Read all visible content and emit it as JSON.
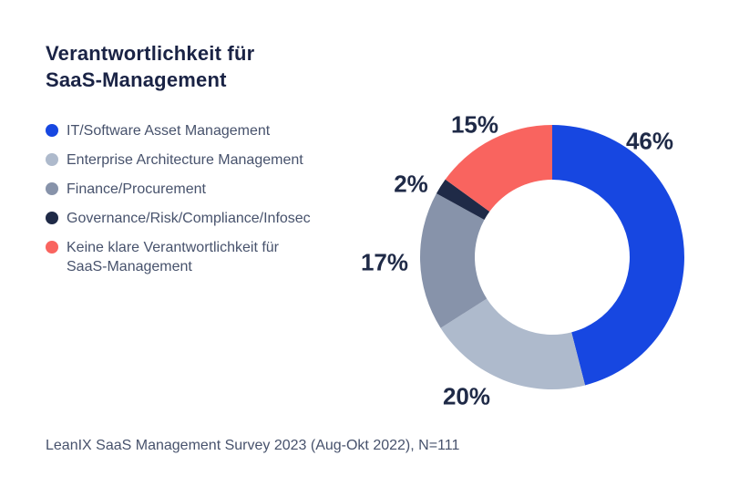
{
  "title": "Verantwortlichkeit für\nSaaS-Management",
  "footer": "LeanIX SaaS Management Survey 2023 (Aug-Okt 2022), N=111",
  "colors": {
    "title": "#1A2345",
    "body_text": "#47526C",
    "percent_labels": "#1F2A47",
    "background": "#FFFFFF"
  },
  "chart_data": {
    "type": "pie",
    "subtype": "donut",
    "title": "Verantwortlichkeit für SaaS-Management",
    "legend_position": "left",
    "start_angle_deg": 0,
    "direction": "clockwise",
    "units": "%",
    "segments": [
      {
        "label": "IT/Software Asset Management",
        "value": 46,
        "display": "46%",
        "color": "#1747E1"
      },
      {
        "label": "Enterprise Architecture Management",
        "value": 20,
        "display": "20%",
        "color": "#AEBACC"
      },
      {
        "label": "Finance/Procurement",
        "value": 17,
        "display": "17%",
        "color": "#8793AA"
      },
      {
        "label": "Governance/Risk/Compliance/Infosec",
        "value": 2,
        "display": "2%",
        "color": "#1F2A47"
      },
      {
        "label": "Keine klare Verantwortlichkeit für SaaS-Management",
        "value": 15,
        "display": "15%",
        "color": "#F9645F"
      }
    ]
  }
}
